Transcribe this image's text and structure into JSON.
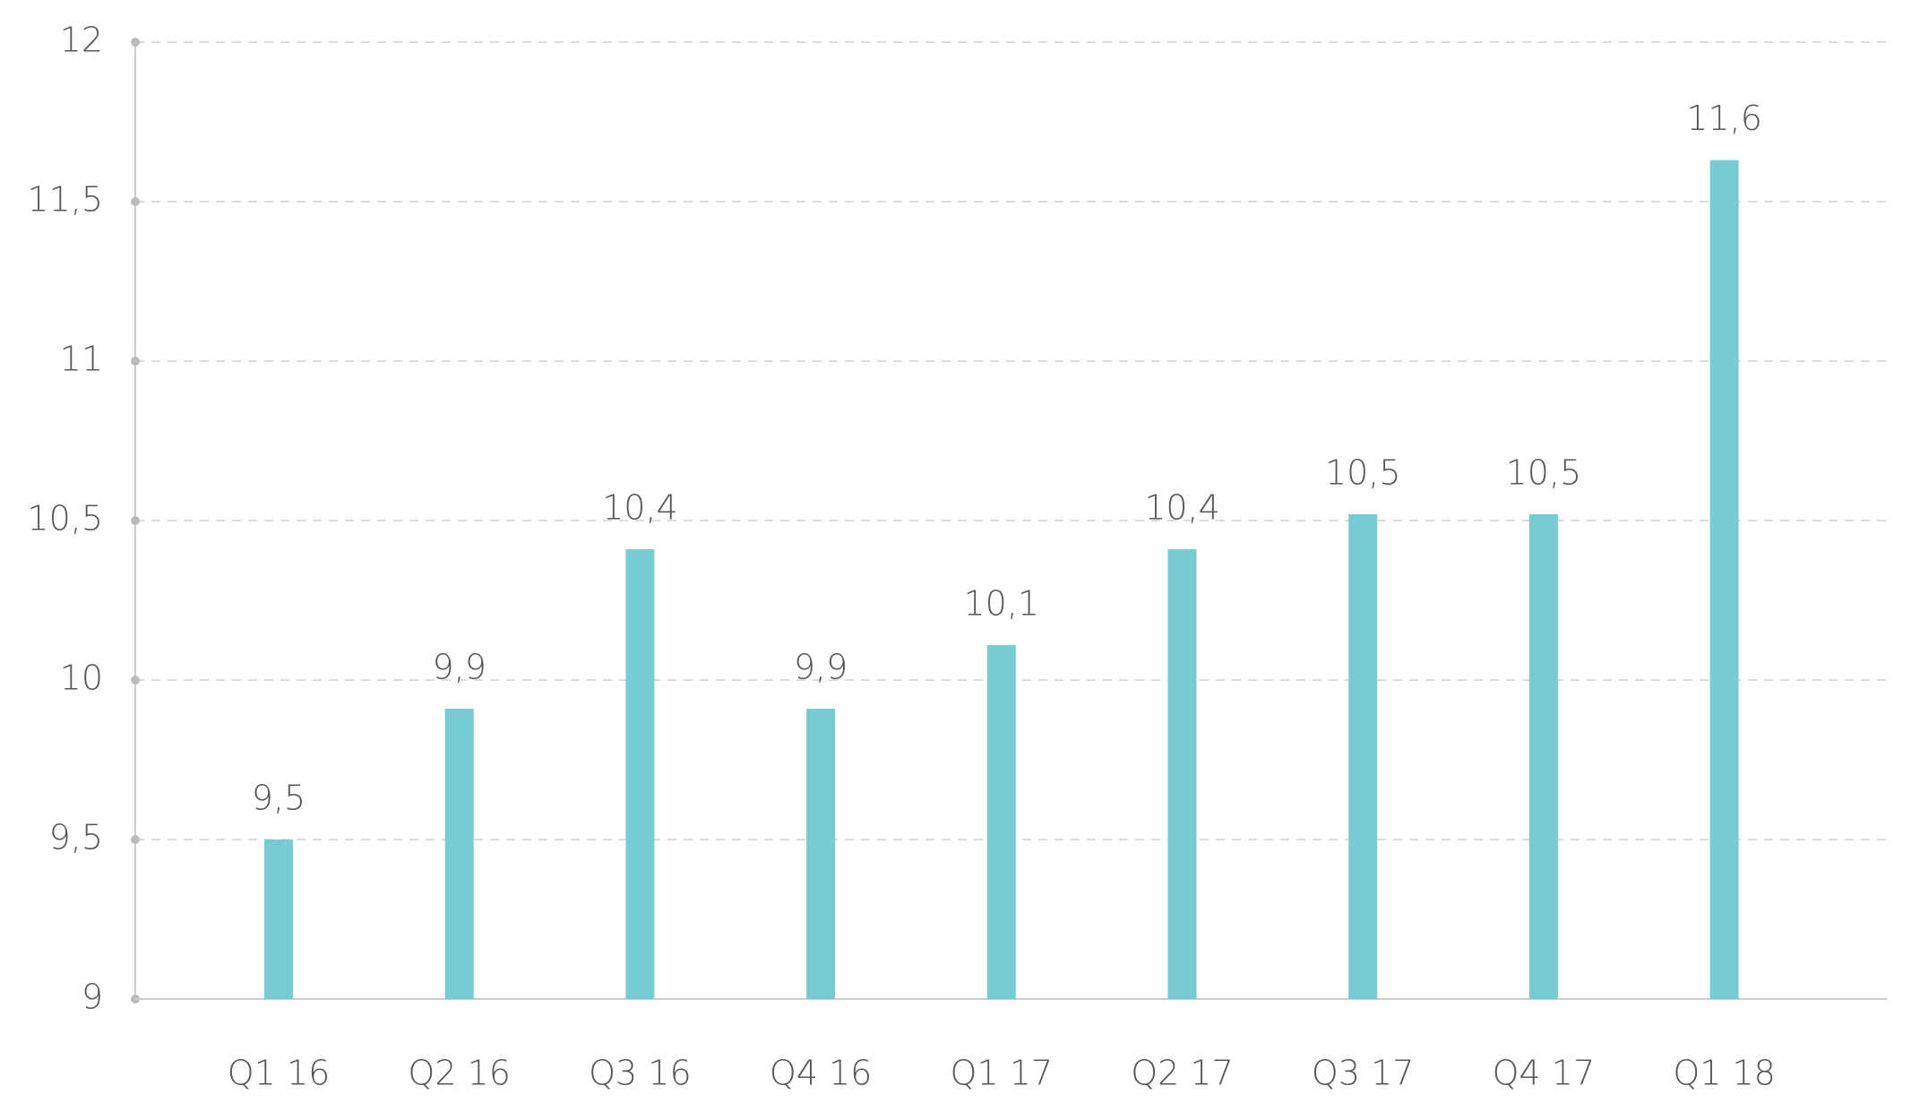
{
  "chart_data": {
    "type": "bar",
    "categories": [
      "Q1 16",
      "Q2 16",
      "Q3 16",
      "Q4 16",
      "Q1 17",
      "Q2 17",
      "Q3 17",
      "Q4 17",
      "Q1 18"
    ],
    "values": [
      9.5,
      9.91,
      10.41,
      9.91,
      10.11,
      10.41,
      10.52,
      10.52,
      11.63
    ],
    "value_labels": [
      "9,5",
      "9,9",
      "10,4",
      "9,9",
      "10,1",
      "10,4",
      "10,5",
      "10,5",
      "11,6"
    ],
    "color": "#76ccd2",
    "ylim": [
      9,
      12
    ],
    "yticks": [
      9,
      {
        "value": 9.5,
        "label": "9,5"
      },
      10,
      {
        "value": 10.5,
        "label": "10,5"
      },
      11,
      {
        "value": 11.5,
        "label": "11,5"
      },
      12
    ],
    "grid": true
  }
}
